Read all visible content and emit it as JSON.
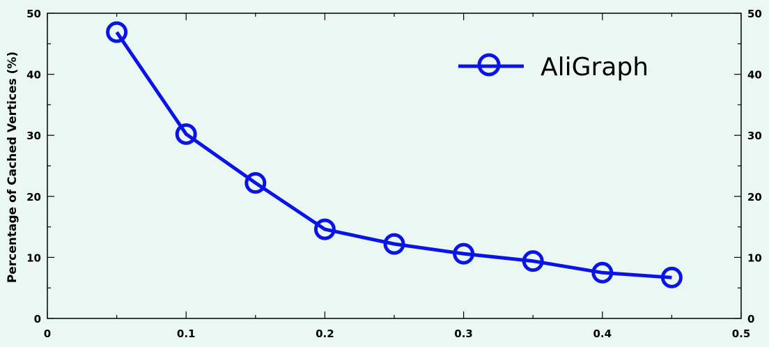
{
  "chart_data": {
    "type": "line",
    "xlabel": "",
    "ylabel": "Percentage of Cached Vertices (%)",
    "xlim": [
      0,
      0.5
    ],
    "ylim": [
      0,
      50
    ],
    "x_ticks": [
      "0",
      "0.1",
      "0.2",
      "0.3",
      "0.4",
      "0.5"
    ],
    "y_ticks": [
      "0",
      "10",
      "20",
      "30",
      "40",
      "50"
    ],
    "right_y_ticks": [
      "0",
      "10",
      "20",
      "30",
      "40",
      "50"
    ],
    "grid": false,
    "legend_position": "top-right",
    "series": [
      {
        "name": "AliGraph",
        "color": "#0a14e6",
        "marker": "open-circle",
        "x": [
          0.05,
          0.1,
          0.15,
          0.2,
          0.25,
          0.3,
          0.35,
          0.4,
          0.45
        ],
        "values": [
          46.9,
          30.2,
          22.2,
          14.6,
          12.2,
          10.6,
          9.4,
          7.5,
          6.7
        ]
      }
    ]
  }
}
